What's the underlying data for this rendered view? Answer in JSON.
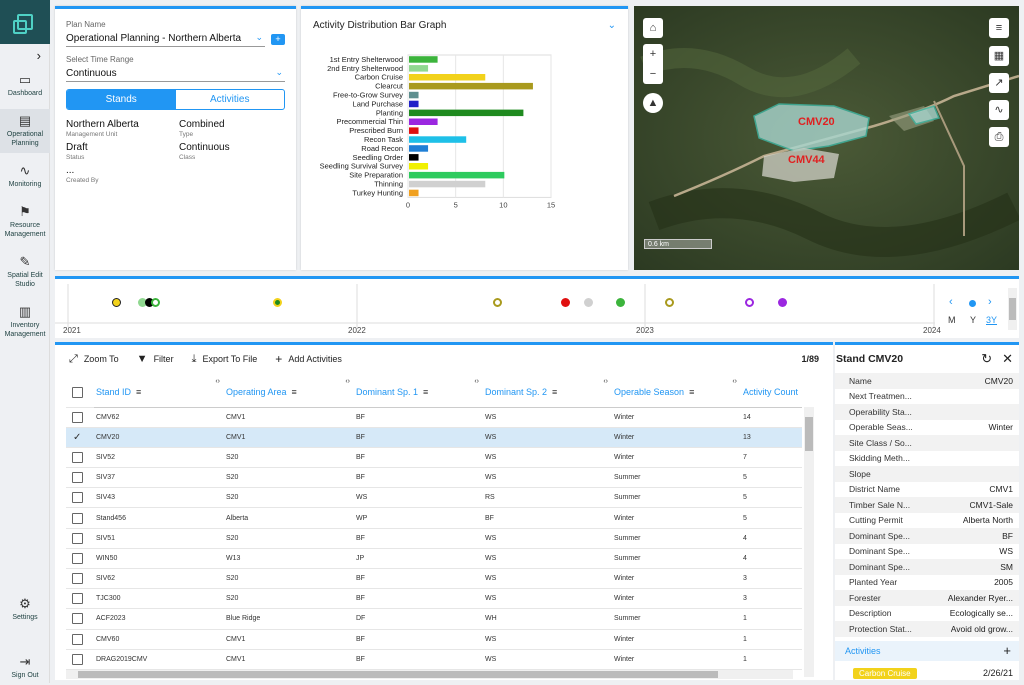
{
  "nav": {
    "items": [
      {
        "label": "Dashboard",
        "icon": "monitor-icon"
      },
      {
        "label": "Operational Planning",
        "icon": "clipboard-icon"
      },
      {
        "label": "Monitoring",
        "icon": "pulse-icon"
      },
      {
        "label": "Resource Management",
        "icon": "org-chart-icon"
      },
      {
        "label": "Spatial Edit Studio",
        "icon": "edit-map-icon"
      },
      {
        "label": "Inventory Management",
        "icon": "bar-chart-icon"
      }
    ],
    "settings": "Settings",
    "signout": "Sign Out"
  },
  "plan": {
    "plan_name_label": "Plan Name",
    "plan_name": "Operational Planning - Northern Alberta",
    "time_range_label": "Select Time Range",
    "time_range": "Continuous",
    "tab_stands": "Stands",
    "tab_activities": "Activities",
    "fields": [
      {
        "value": "Northern Alberta",
        "label": "Management Unit"
      },
      {
        "value": "Combined",
        "label": "Type"
      },
      {
        "value": "Draft",
        "label": "Status"
      },
      {
        "value": "Continuous",
        "label": "Class"
      },
      {
        "value": "...",
        "label": "Created By"
      }
    ]
  },
  "chart_panel": {
    "title": "Activity Distribution Bar Graph"
  },
  "chart_data": {
    "type": "bar",
    "orientation": "horizontal",
    "categories": [
      "1st Entry Shelterwood",
      "2nd Entry Shelterwood",
      "Carbon Cruise",
      "Clearcut",
      "Free-to-Grow Survey",
      "Land Purchase",
      "Planting",
      "Precommercial Thin",
      "Prescribed Burn",
      "Recon Task",
      "Road Recon",
      "Seedling Order",
      "Seedling Survival Survey",
      "Site Preparation",
      "Thinning",
      "Turkey Hunting"
    ],
    "values": [
      3,
      2,
      8,
      13,
      1,
      1,
      12,
      3,
      1,
      6,
      2,
      1,
      2,
      10,
      8,
      1
    ],
    "colors": [
      "#3cb43c",
      "#90d890",
      "#f2d21b",
      "#a99a1e",
      "#5e8f8f",
      "#2121c8",
      "#1f8a1f",
      "#9b27e0",
      "#e01010",
      "#1ec0e8",
      "#1f7fd6",
      "#000000",
      "#f0f000",
      "#2ecb5e",
      "#d0d0d0",
      "#f0a020"
    ],
    "xticks": [
      0,
      5,
      10,
      15
    ],
    "xlim": [
      0,
      15
    ]
  },
  "map": {
    "labels": [
      "CMV20",
      "CMV44"
    ],
    "scale": "0.6 km"
  },
  "timeline": {
    "years": [
      "2021",
      "2022",
      "2023",
      "2024"
    ],
    "zoom": [
      "M",
      "Y",
      "3Y"
    ]
  },
  "grid": {
    "toolbar": {
      "zoom": "Zoom To",
      "filter": "Filter",
      "export": "Export To File",
      "add": "Add Activities"
    },
    "count": "1/89",
    "headers": [
      "Stand ID",
      "Operating Area",
      "Dominant Sp. 1",
      "Dominant Sp. 2",
      "Operable Season",
      "Activity Count"
    ],
    "rows": [
      [
        "CMV62",
        "CMV1",
        "BF",
        "WS",
        "Winter",
        "14"
      ],
      [
        "CMV20",
        "CMV1",
        "BF",
        "WS",
        "Winter",
        "13"
      ],
      [
        "SIV52",
        "S20",
        "BF",
        "WS",
        "Winter",
        "7"
      ],
      [
        "SIV37",
        "S20",
        "BF",
        "WS",
        "Summer",
        "5"
      ],
      [
        "SIV43",
        "S20",
        "WS",
        "RS",
        "Summer",
        "5"
      ],
      [
        "Stand456",
        "Alberta",
        "WP",
        "BF",
        "Winter",
        "5"
      ],
      [
        "SIV51",
        "S20",
        "BF",
        "WS",
        "Summer",
        "4"
      ],
      [
        "WIN50",
        "W13",
        "JP",
        "WS",
        "Summer",
        "4"
      ],
      [
        "SIV62",
        "S20",
        "BF",
        "WS",
        "Winter",
        "3"
      ],
      [
        "TJC300",
        "S20",
        "BF",
        "WS",
        "Winter",
        "3"
      ],
      [
        "ACF2023",
        "Blue Ridge",
        "DF",
        "WH",
        "Summer",
        "1"
      ],
      [
        "CMV60",
        "CMV1",
        "BF",
        "WS",
        "Winter",
        "1"
      ],
      [
        "DRAG2019CMV",
        "CMV1",
        "BF",
        "WS",
        "Winter",
        "1"
      ]
    ]
  },
  "detail": {
    "title": "Stand CMV20",
    "rows": [
      [
        "Name",
        "CMV20"
      ],
      [
        "Next Treatmen...",
        ""
      ],
      [
        "Operability Sta...",
        ""
      ],
      [
        "Operable Seas...",
        "Winter"
      ],
      [
        "Site Class / So...",
        ""
      ],
      [
        "Skidding Meth...",
        ""
      ],
      [
        "Slope",
        ""
      ],
      [
        "District Name",
        "CMV1"
      ],
      [
        "Timber Sale N...",
        "CMV1-Sale"
      ],
      [
        "Cutting Permit",
        "Alberta North"
      ],
      [
        "Dominant Spe...",
        "BF"
      ],
      [
        "Dominant Spe...",
        "WS"
      ],
      [
        "Dominant Spe...",
        "SM"
      ],
      [
        "Planted Year",
        "2005"
      ],
      [
        "Forester",
        "Alexander Ryer..."
      ],
      [
        "Description",
        "Ecologically se..."
      ],
      [
        "Protection Stat...",
        "Avoid old grow..."
      ]
    ],
    "activities_label": "Activities",
    "activity_chip": "Carbon Cruise",
    "activity_date": "2/26/21"
  }
}
